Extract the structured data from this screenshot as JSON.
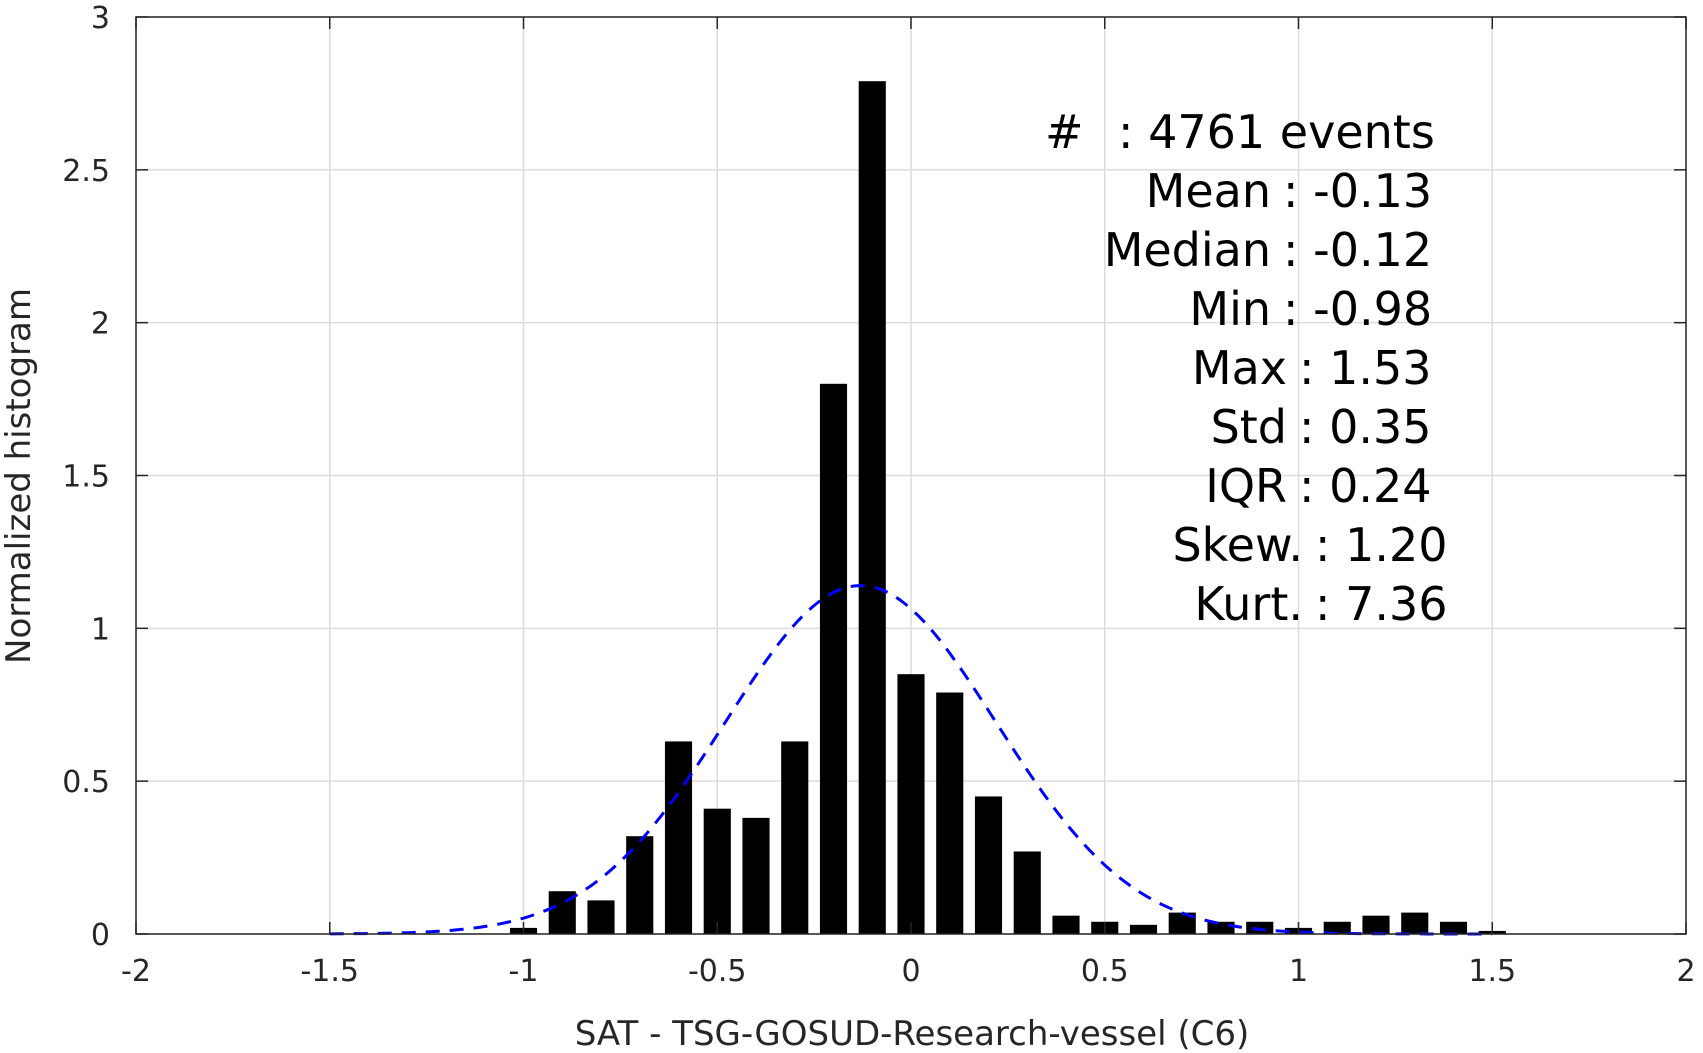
{
  "chart_data": {
    "type": "bar",
    "xlabel": "SAT - TSG-GOSUD-Research-vessel (C6)",
    "ylabel": "Normalized histogram",
    "xlim": [
      -2,
      2
    ],
    "ylim": [
      0,
      3
    ],
    "x_ticks": [
      "-2",
      "-1.5",
      "-1",
      "-0.5",
      "0",
      "0.5",
      "1",
      "1.5",
      "2"
    ],
    "y_ticks": [
      "0",
      "0.5",
      "1",
      "1.5",
      "2",
      "2.5",
      "3"
    ],
    "grid": true,
    "bar_color": "#000000",
    "bar_width": 0.07,
    "bars": [
      {
        "x": -1.0,
        "y": 0.02
      },
      {
        "x": -0.9,
        "y": 0.14
      },
      {
        "x": -0.8,
        "y": 0.11
      },
      {
        "x": -0.7,
        "y": 0.32
      },
      {
        "x": -0.6,
        "y": 0.63
      },
      {
        "x": -0.5,
        "y": 0.41
      },
      {
        "x": -0.4,
        "y": 0.38
      },
      {
        "x": -0.3,
        "y": 0.63
      },
      {
        "x": -0.2,
        "y": 1.8
      },
      {
        "x": -0.1,
        "y": 2.79
      },
      {
        "x": 0.0,
        "y": 0.85
      },
      {
        "x": 0.1,
        "y": 0.79
      },
      {
        "x": 0.2,
        "y": 0.45
      },
      {
        "x": 0.3,
        "y": 0.27
      },
      {
        "x": 0.4,
        "y": 0.06
      },
      {
        "x": 0.5,
        "y": 0.04
      },
      {
        "x": 0.6,
        "y": 0.03
      },
      {
        "x": 0.7,
        "y": 0.07
      },
      {
        "x": 0.8,
        "y": 0.04
      },
      {
        "x": 0.9,
        "y": 0.04
      },
      {
        "x": 1.0,
        "y": 0.02
      },
      {
        "x": 1.1,
        "y": 0.04
      },
      {
        "x": 1.2,
        "y": 0.06
      },
      {
        "x": 1.3,
        "y": 0.07
      },
      {
        "x": 1.4,
        "y": 0.04
      },
      {
        "x": 1.5,
        "y": 0.01
      }
    ],
    "fit_curve": {
      "style": "dashed",
      "color": "#0000ff",
      "mean": -0.13,
      "std": 0.35,
      "x_range": [
        -1.5,
        1.5
      ]
    },
    "stats": {
      "count_label": "#",
      "count_value": ": 4761 events",
      "lines": [
        {
          "label": "Mean",
          "value": ": -0.13"
        },
        {
          "label": "Median",
          "value": ": -0.12"
        },
        {
          "label": "Min",
          "value": ": -0.98"
        },
        {
          "label": "Max",
          "value": ": 1.53"
        },
        {
          "label": "Std",
          "value": ": 0.35"
        },
        {
          "label": "IQR",
          "value": ": 0.24"
        },
        {
          "label": "Skew.",
          "value": ": 1.20"
        },
        {
          "label": "Kurt.",
          "value": ": 7.36"
        }
      ]
    }
  }
}
